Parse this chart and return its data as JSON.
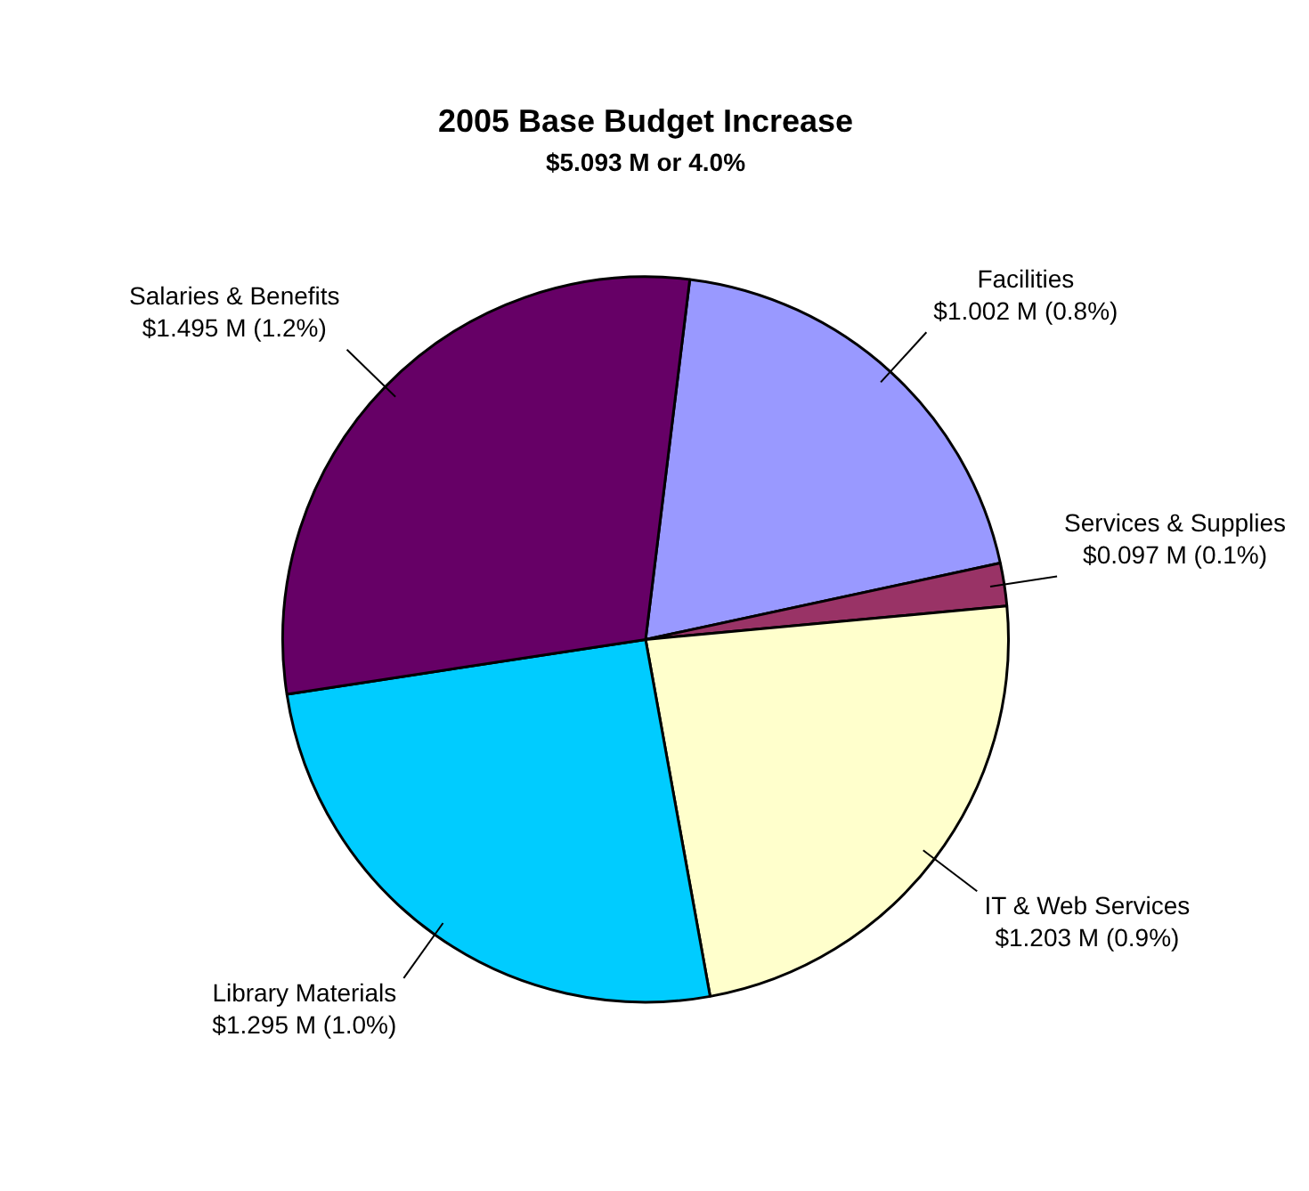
{
  "chart_data": {
    "type": "pie",
    "title": "2005 Base Budget Increase",
    "subtitle": "$5.093 M or 4.0%",
    "categories": [
      "Facilities",
      "Services & Supplies",
      "IT & Web Services",
      "Library Materials",
      "Salaries & Benefits"
    ],
    "values": [
      1.002,
      0.097,
      1.203,
      1.295,
      1.495
    ],
    "value_labels": [
      "$1.002 M (0.8%)",
      "$0.097 M (0.1%)",
      "$1.203 M (0.9%)",
      "$1.295 M (1.0%)",
      "$1.495 M (1.2%)"
    ],
    "colors": [
      "#9999ff",
      "#993366",
      "#ffffcc",
      "#00ccff",
      "#660066"
    ],
    "legend": false
  }
}
